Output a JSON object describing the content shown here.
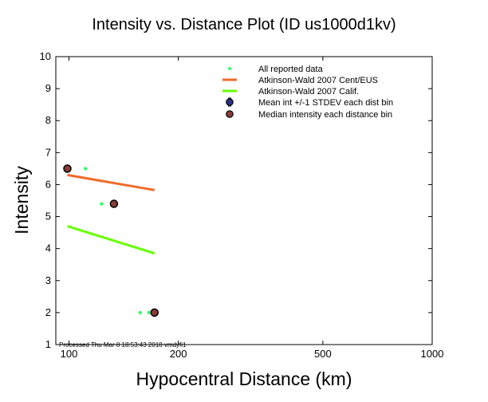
{
  "chart_data": {
    "type": "scatter",
    "title": "Intensity vs. Distance Plot (ID us1000d1kv)",
    "xlabel": "Hypocentral Distance (km)",
    "ylabel": "Intensity",
    "x_scale": "log",
    "xlim": [
      92,
      1000
    ],
    "ylim": [
      1,
      10
    ],
    "x_ticks": [
      100,
      200,
      500,
      1000
    ],
    "x_tick_labels": [
      "100",
      "200",
      "500",
      "1000"
    ],
    "y_ticks": [
      1,
      2,
      3,
      4,
      5,
      6,
      7,
      8,
      9,
      10
    ],
    "y_tick_labels": [
      "1",
      "2",
      "3",
      "4",
      "5",
      "6",
      "7",
      "8",
      "9",
      "10"
    ],
    "grid": false,
    "legend_position": "top-right",
    "annotation": "Processed Thu Mar  8 18:53:43 2018 vmdyfi1",
    "series": [
      {
        "name": "All reported data",
        "kind": "points",
        "color": "#33ff66",
        "x": [
          99,
          111,
          123,
          157,
          166
        ],
        "y": [
          6.5,
          6.5,
          5.4,
          2.0,
          2.0
        ]
      },
      {
        "name": "Atkinson-Wald 2007 Cent/EUS",
        "kind": "line",
        "color": "#f26a2a",
        "x": [
          99,
          172
        ],
        "y": [
          6.3,
          5.83
        ]
      },
      {
        "name": "Atkinson-Wald 2007 Calif.",
        "kind": "line",
        "color": "#66ff00",
        "x": [
          99,
          172
        ],
        "y": [
          4.7,
          3.85
        ]
      },
      {
        "name": "Mean int +/-1 STDEV each dist bin",
        "kind": "errorbar",
        "color": "#2c2f8c",
        "x": [],
        "y": []
      },
      {
        "name": "Median intensity each distance bin",
        "kind": "points",
        "color": "#8b3a3a",
        "x": [
          99,
          133,
          172
        ],
        "y": [
          6.5,
          5.4,
          2.0
        ]
      }
    ]
  }
}
